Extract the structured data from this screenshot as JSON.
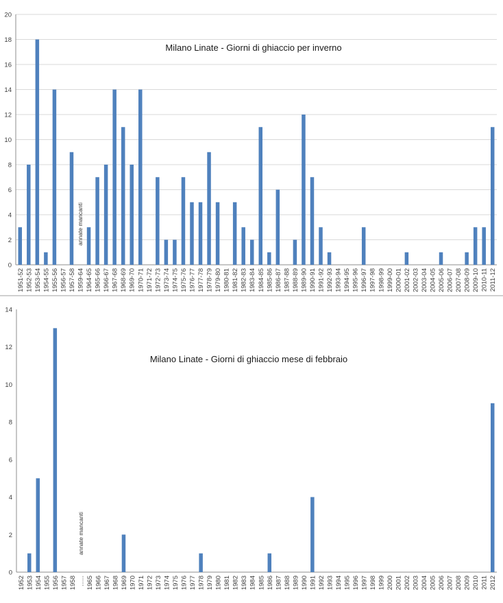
{
  "colors": {
    "bar": "#4f81bd",
    "grid": "#d9d9d9",
    "axis": "#8c8c8c",
    "text": "#404040"
  },
  "chart_data": [
    {
      "type": "bar",
      "title": "Milano Linate - Giorni di ghiaccio per inverno",
      "xlabel": "",
      "ylabel": "",
      "ylim": [
        0,
        20
      ],
      "yticks": [
        0,
        2,
        4,
        6,
        8,
        10,
        12,
        14,
        16,
        18,
        20
      ],
      "grid": true,
      "annotation": "annate mancanti",
      "categories": [
        "1951-52",
        "1952-53",
        "1953-54",
        "1954-55",
        "1955-56",
        "1956-57",
        "1957-58",
        "1959-64",
        "1964-65",
        "1965-66",
        "1966-67",
        "1967-68",
        "1968-69",
        "1969-70",
        "1970-71",
        "1971-72",
        "1972-73",
        "1973-74",
        "1974-75",
        "1975-76",
        "1976-77",
        "1977-78",
        "1978-79",
        "1979-80",
        "1980-81",
        "1981-82",
        "1982-83",
        "1983-84",
        "1984-85",
        "1985-86",
        "1986-87",
        "1987-88",
        "1988-89",
        "1989-90",
        "1990-91",
        "1991-92",
        "1992-93",
        "1993-94",
        "1994-95",
        "1995-96",
        "1996-97",
        "1997-98",
        "1998-99",
        "1999-00",
        "2000-01",
        "2001-02",
        "2002-03",
        "2003-04",
        "2004-05",
        "2005-06",
        "2006-07",
        "2007-08",
        "2008-09",
        "2009-10",
        "2010-11",
        "2011-12"
      ],
      "values": [
        3,
        8,
        18,
        1,
        14,
        0,
        9,
        0,
        3,
        7,
        8,
        14,
        11,
        8,
        14,
        0,
        7,
        2,
        2,
        7,
        5,
        5,
        9,
        5,
        0,
        5,
        3,
        2,
        11,
        1,
        6,
        0,
        2,
        12,
        7,
        3,
        1,
        0,
        0,
        0,
        3,
        0,
        0,
        0,
        0,
        1,
        0,
        0,
        0,
        1,
        0,
        0,
        1,
        3,
        3,
        11
      ]
    },
    {
      "type": "bar",
      "title": "Milano Linate - Giorni di ghiaccio mese di febbraio",
      "xlabel": "",
      "ylabel": "",
      "ylim": [
        0,
        14
      ],
      "yticks": [
        0,
        2,
        4,
        6,
        8,
        10,
        12,
        14
      ],
      "grid": false,
      "annotation": "annate mancanti",
      "categories": [
        "1952",
        "1953",
        "1954",
        "1955",
        "1956",
        "1957",
        "1958",
        "......",
        "1965",
        "1966",
        "1967",
        "1968",
        "1969",
        "1970",
        "1971",
        "1972",
        "1973",
        "1974",
        "1975",
        "1976",
        "1977",
        "1978",
        "1979",
        "1980",
        "1981",
        "1982",
        "1983",
        "1984",
        "1985",
        "1986",
        "1987",
        "1988",
        "1989",
        "1990",
        "1991",
        "1992",
        "1993",
        "1994",
        "1995",
        "1996",
        "1997",
        "1998",
        "1999",
        "2000",
        "2001",
        "2002",
        "2003",
        "2004",
        "2005",
        "2006",
        "2007",
        "2008",
        "2009",
        "2010",
        "2011",
        "2012"
      ],
      "values": [
        0,
        1,
        5,
        0,
        13,
        0,
        0,
        0,
        0,
        0,
        0,
        0,
        2,
        0,
        0,
        0,
        0,
        0,
        0,
        0,
        0,
        1,
        0,
        0,
        0,
        0,
        0,
        0,
        0,
        1,
        0,
        0,
        0,
        0,
        4,
        0,
        0,
        0,
        0,
        0,
        0,
        0,
        0,
        0,
        0,
        0,
        0,
        0,
        0,
        0,
        0,
        0,
        0,
        0,
        0,
        9
      ]
    }
  ]
}
